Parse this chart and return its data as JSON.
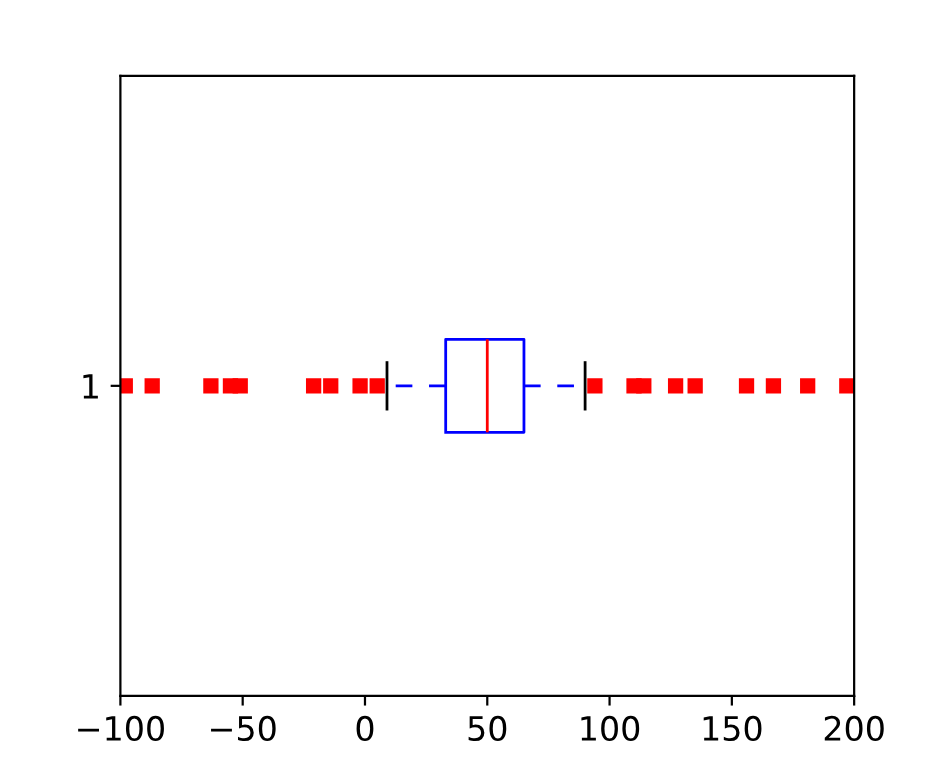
{
  "chart_data": {
    "type": "box",
    "orientation": "horizontal",
    "categories": [
      "1"
    ],
    "series": [
      {
        "color": "#0000ff",
        "boxes": [
          {
            "low": 9,
            "q1": 33,
            "median": 50,
            "q3": 65,
            "high": 90,
            "outliers": [
              -98,
              -87,
              -63,
              -55,
              -51,
              -21,
              -14,
              -2,
              5,
              94,
              110,
              114,
              127,
              135,
              156,
              167,
              181,
              197
            ]
          }
        ]
      }
    ],
    "xlim": [
      -100,
      200
    ],
    "xticks": [
      -100,
      -50,
      0,
      50,
      100,
      150,
      200
    ],
    "marker": "square",
    "grid": false
  }
}
